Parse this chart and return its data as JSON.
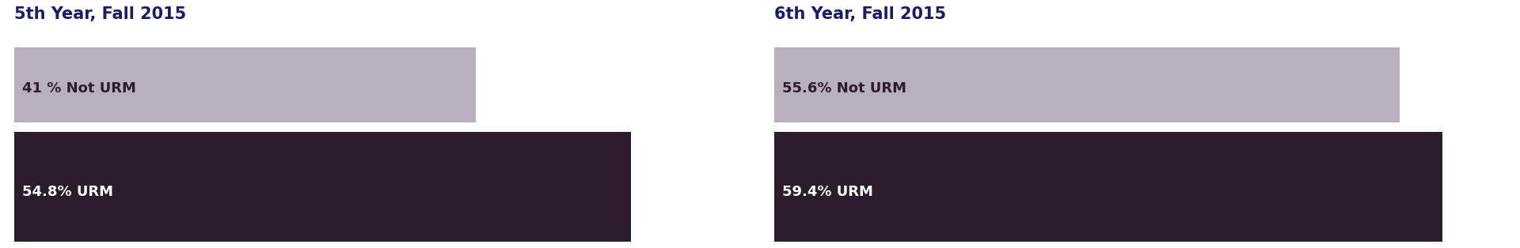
{
  "panels": [
    {
      "title": "5th Year, Fall 2015",
      "not_urm_label": "41 % Not URM",
      "not_urm_value": 41.0,
      "urm_label": "54.8% URM",
      "urm_value": 54.8
    },
    {
      "title": "6th Year, Fall 2015",
      "not_urm_label": "55.6% Not URM",
      "not_urm_value": 55.6,
      "urm_label": "59.4% URM",
      "urm_value": 59.4
    }
  ],
  "not_urm_color": "#b8b0bf",
  "urm_color": "#2d1b2e",
  "title_color": "#1a1a6e",
  "not_urm_text_color": "#2d1b2e",
  "urm_text_color": "#ffffff",
  "background_color": "#ffffff",
  "bar_scale": 65.0,
  "title_fontsize": 15,
  "label_fontsize": 13
}
